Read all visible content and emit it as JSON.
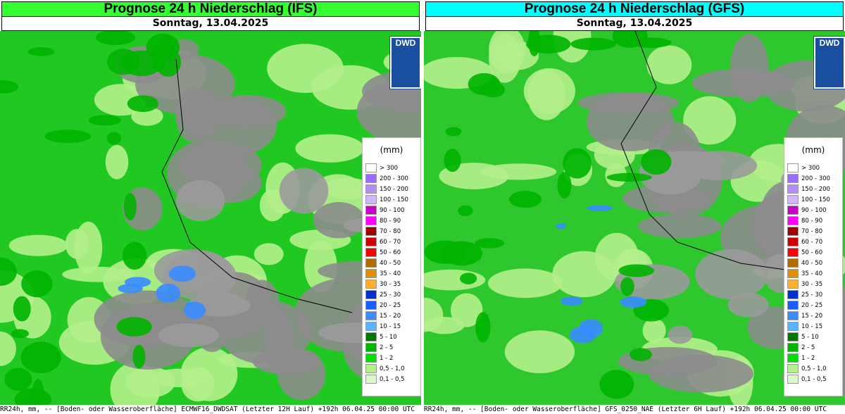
{
  "panels": [
    {
      "title": "Prognose 24 h Niederschlag (IFS)",
      "title_color": "#33ff33",
      "subtitle": "Sonntag, 13.04.2025",
      "logo": "DWD",
      "footer": "RR24h, mm, -- [Boden- oder Wasseroberfläche] ECMWF16_DWDSAT (Letzter 12H Lauf) +192h  06.04.25 00:00 UTC"
    },
    {
      "title": "Prognose 24 h Niederschlag (GFS)",
      "title_color": "#00ffff",
      "subtitle": "Sonntag, 13.04.2025",
      "logo": "DWD",
      "footer": "RR24h, mm, -- [Boden- oder Wasseroberfläche] GFS_0250_NAE (Letzter  6H Lauf) +192h  06.04.25 00:00 UTC"
    }
  ],
  "legend": {
    "unit": "(mm)",
    "items": [
      {
        "label": "> 300",
        "color": "#ffffff"
      },
      {
        "label": "200 - 300",
        "color": "#9a6cff"
      },
      {
        "label": "150 - 200",
        "color": "#b48cff"
      },
      {
        "label": "100 - 150",
        "color": "#d2b4ff"
      },
      {
        "label": "90 - 100",
        "color": "#cc00cc"
      },
      {
        "label": "80 - 90",
        "color": "#ff00ff"
      },
      {
        "label": "70 - 80",
        "color": "#a00000"
      },
      {
        "label": "60 - 70",
        "color": "#cc0000"
      },
      {
        "label": "50 - 60",
        "color": "#ff0000"
      },
      {
        "label": "40 - 50",
        "color": "#b06c00"
      },
      {
        "label": "35 - 40",
        "color": "#e09000"
      },
      {
        "label": "30 - 35",
        "color": "#ffb030"
      },
      {
        "label": "25 - 30",
        "color": "#0030d0"
      },
      {
        "label": "20 - 25",
        "color": "#1a5cff"
      },
      {
        "label": "15 - 20",
        "color": "#3a8cff"
      },
      {
        "label": "10 - 15",
        "color": "#5ab4ff"
      },
      {
        "label": "5 - 10",
        "color": "#007800"
      },
      {
        "label": "2 - 5",
        "color": "#00b400"
      },
      {
        "label": "1 - 2",
        "color": "#00e000"
      },
      {
        "label": "0,5 - 1,0",
        "color": "#b4f08c"
      },
      {
        "label": "0,1 - 0,5",
        "color": "#dcf8c8"
      }
    ]
  }
}
